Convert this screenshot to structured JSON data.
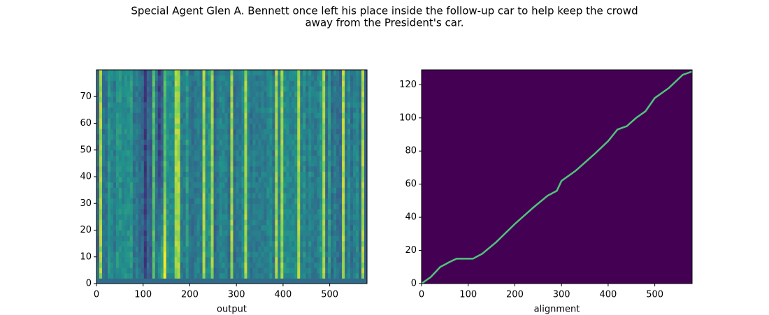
{
  "title": [
    "Special Agent Glen A. Bennett once left his place inside the follow-up car to help keep the crowd",
    "away from the President's car."
  ],
  "chart_data": [
    {
      "type": "heatmap",
      "xlabel": "output",
      "xlim": [
        0,
        580
      ],
      "ylim": [
        0,
        80
      ],
      "xticks": [
        0,
        100,
        200,
        300,
        400,
        500
      ],
      "yticks": [
        0,
        10,
        20,
        30,
        40,
        50,
        60,
        70
      ]
    },
    {
      "type": "line",
      "xlabel": "alignment",
      "xlim": [
        0,
        580
      ],
      "ylim": [
        0,
        129
      ],
      "xticks": [
        0,
        100,
        200,
        300,
        400,
        500
      ],
      "yticks": [
        0,
        20,
        40,
        60,
        80,
        100,
        120
      ],
      "background": "#440154",
      "color": "#4fc47a",
      "x": [
        0,
        20,
        40,
        60,
        75,
        110,
        130,
        160,
        200,
        240,
        270,
        290,
        300,
        330,
        370,
        400,
        420,
        440,
        460,
        480,
        500,
        530,
        560,
        580
      ],
      "y": [
        0,
        4,
        10,
        13,
        15,
        15,
        18,
        25,
        36,
        46,
        53,
        56,
        62,
        68,
        78,
        86,
        93,
        95,
        100,
        104,
        112,
        118,
        126,
        128
      ]
    }
  ]
}
